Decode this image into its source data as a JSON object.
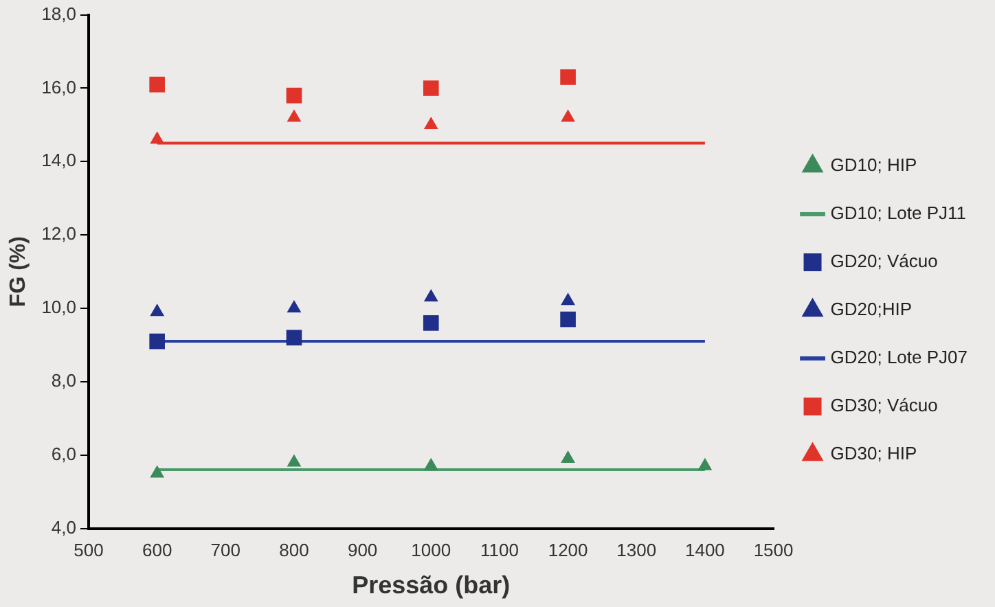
{
  "chart_data": {
    "type": "scatter",
    "xlabel": "Pressão (bar)",
    "ylabel": "FG (%)",
    "xlim": [
      500,
      1500
    ],
    "xticks": [
      500,
      600,
      700,
      800,
      900,
      1000,
      1100,
      1200,
      1300,
      1400,
      1500
    ],
    "ylim": [
      4,
      18
    ],
    "yticks": [
      {
        "value": 4,
        "label": "4,0"
      },
      {
        "value": 6,
        "label": "6,0"
      },
      {
        "value": 8,
        "label": "8,0"
      },
      {
        "value": 10,
        "label": "10,0"
      },
      {
        "value": 12,
        "label": "12,0"
      },
      {
        "value": 14,
        "label": "14,0"
      },
      {
        "value": 16,
        "label": "16,0"
      },
      {
        "value": 18,
        "label": "18,0"
      }
    ],
    "grid": false,
    "legend": "right",
    "series": [
      {
        "name": "GD10; HIP",
        "type": "scatter",
        "marker": "triangle",
        "color": "#3a8a5a",
        "x": [
          600,
          800,
          1000,
          1200,
          1400
        ],
        "values": [
          5.5,
          5.8,
          5.7,
          5.9,
          5.7
        ]
      },
      {
        "name": "GD10; Lote PJ11",
        "type": "line",
        "marker": "none",
        "color": "#4a9a6a",
        "x": [
          600,
          1400
        ],
        "values": [
          5.6,
          5.6
        ]
      },
      {
        "name": "GD20; Vácuo",
        "type": "scatter",
        "marker": "square",
        "color": "#1f2f8a",
        "x": [
          600,
          800,
          1000,
          1200
        ],
        "values": [
          9.1,
          9.2,
          9.6,
          9.7
        ]
      },
      {
        "name": "GD20;HIP",
        "type": "scatter",
        "marker": "triangle",
        "color": "#1f2f8a",
        "x": [
          600,
          800,
          1000,
          1200
        ],
        "values": [
          9.9,
          10.0,
          10.3,
          10.2
        ]
      },
      {
        "name": "GD20; Lote PJ07",
        "type": "line",
        "marker": "none",
        "color": "#2a3fa0",
        "x": [
          600,
          1400
        ],
        "values": [
          9.1,
          9.1
        ]
      },
      {
        "name": "GD30; Vácuo",
        "type": "scatter",
        "marker": "square",
        "color": "#e0332a",
        "x": [
          600,
          800,
          1000,
          1200
        ],
        "values": [
          16.1,
          15.8,
          16.0,
          16.3
        ]
      },
      {
        "name": "GD30; HIP",
        "type": "scatter",
        "marker": "triangle",
        "color": "#e0332a",
        "x": [
          600,
          800,
          1000,
          1200
        ],
        "values": [
          14.6,
          15.2,
          15.0,
          15.2
        ]
      },
      {
        "type": "line",
        "marker": "none",
        "color": "#e0332a",
        "x": [
          600,
          1400
        ],
        "values": [
          14.5,
          14.5
        ]
      }
    ]
  }
}
